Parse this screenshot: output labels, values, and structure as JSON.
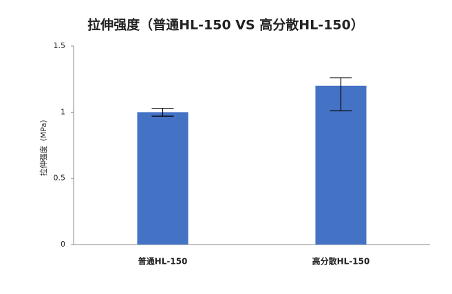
{
  "chart_data": {
    "type": "bar",
    "title": "拉伸强度（普通HL-150 VS 高分散HL-150）",
    "y_label": "拉伸强度（MPa）",
    "categories": [
      "普通HL-150",
      "高分散HL-150"
    ],
    "values": [
      1.0,
      1.2
    ],
    "error_plus": [
      0.03,
      0.06
    ],
    "error_minus": [
      0.03,
      0.19
    ],
    "color": "#4472c4",
    "ylim": [
      0,
      1.5
    ],
    "yticks": [
      0,
      0.5,
      1,
      1.5
    ],
    "grid": false
  }
}
